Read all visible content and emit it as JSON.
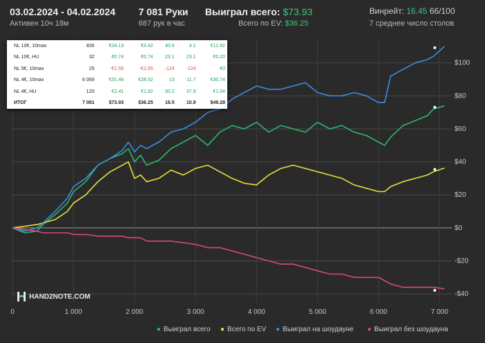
{
  "header": {
    "date_range": "03.02.2024 - 04.02.2024",
    "active": "Активен 10ч 18м",
    "hands": "7 081 Руки",
    "hands_per_hour": "687 рук в час",
    "won_total_label": "Выиграл всего:",
    "won_total_value": "$73.93",
    "ev_total_label": "Всего по EV:",
    "ev_total_value": "$36.25",
    "winrate_label": "Винрейт:",
    "winrate_value": "16.45",
    "winrate_rest": "66/100",
    "avg_tables": "7 среднее число столов"
  },
  "stats_table": {
    "rows": [
      {
        "name": "NL 10€, 10max",
        "hands": "835",
        "won": "€34.13",
        "ev": "€3.42",
        "bb": "40.9",
        "evbb": "4.1",
        "sd": "€12.82"
      },
      {
        "name": "NL 10€, HU",
        "hands": "32",
        "won": "€0.74",
        "ev": "€0.74",
        "bb": "23.1",
        "evbb": "23.1",
        "sd": "€0.20"
      },
      {
        "name": "NL 5€, 10max",
        "hands": "25",
        "won": "-€1.55",
        "ev": "-€1.55",
        "bb": "-124",
        "evbb": "-124",
        "sd": "€0"
      },
      {
        "name": "NL 4€, 10max",
        "hands": "6 069",
        "won": "€31.48",
        "ev": "€28.52",
        "bb": "13",
        "evbb": "11.7",
        "sd": "€30.74"
      },
      {
        "name": "NL 4€, HU",
        "hands": "120",
        "won": "€2.41",
        "ev": "€1.82",
        "bb": "50.2",
        "evbb": "37.9",
        "sd": "€1.04"
      }
    ],
    "total": {
      "name": "ИТОГ",
      "hands": "7 081",
      "won": "$73.93",
      "ev": "$36.25",
      "bb": "16.5",
      "evbb": "10.9",
      "sd": "$49.28"
    }
  },
  "logo_text": "HAND2NOTE.COM",
  "chart_data": {
    "type": "line",
    "xlim": [
      0,
      7200
    ],
    "ylim": [
      -45,
      115
    ],
    "x_ticks": [
      0,
      1000,
      2000,
      3000,
      4000,
      5000,
      6000,
      7000
    ],
    "x_tick_labels": [
      "0",
      "1 000",
      "2 000",
      "3 000",
      "4 000",
      "5 000",
      "6 000",
      "7 000"
    ],
    "y_ticks": [
      -40,
      -20,
      0,
      20,
      40,
      60,
      80,
      100
    ],
    "y_tick_labels": [
      "-$40",
      "-$20",
      "$0",
      "$20",
      "$40",
      "$60",
      "$80",
      "$100"
    ],
    "grid": true,
    "legend_position": "bottom",
    "series": [
      {
        "name": "Выиграл всего",
        "color": "#2db86a",
        "x": [
          0,
          200,
          400,
          500,
          700,
          900,
          1000,
          1200,
          1400,
          1600,
          1800,
          1900,
          2000,
          2100,
          2200,
          2400,
          2600,
          2800,
          3000,
          3200,
          3400,
          3600,
          3800,
          4000,
          4200,
          4400,
          4600,
          4800,
          5000,
          5200,
          5400,
          5600,
          5800,
          6000,
          6100,
          6200,
          6400,
          6600,
          6800,
          6900,
          7081
        ],
        "y": [
          0,
          -3,
          -2,
          2,
          8,
          15,
          22,
          28,
          38,
          42,
          45,
          48,
          40,
          44,
          38,
          41,
          48,
          52,
          56,
          50,
          58,
          62,
          60,
          64,
          58,
          62,
          60,
          58,
          64,
          60,
          62,
          58,
          56,
          52,
          50,
          55,
          62,
          65,
          68,
          72,
          73.93
        ]
      },
      {
        "name": "Всего по EV",
        "color": "#e6e23c",
        "x": [
          0,
          200,
          400,
          500,
          700,
          900,
          1000,
          1200,
          1400,
          1600,
          1800,
          1900,
          2000,
          2100,
          2200,
          2400,
          2600,
          2800,
          3000,
          3200,
          3400,
          3600,
          3800,
          4000,
          4200,
          4400,
          4600,
          4800,
          5000,
          5200,
          5400,
          5600,
          5800,
          6000,
          6100,
          6200,
          6400,
          6600,
          6800,
          6900,
          7081
        ],
        "y": [
          0,
          1,
          2,
          3,
          5,
          10,
          15,
          20,
          28,
          34,
          38,
          40,
          30,
          32,
          28,
          30,
          35,
          32,
          36,
          38,
          34,
          30,
          27,
          26,
          32,
          36,
          38,
          36,
          34,
          32,
          30,
          26,
          24,
          22,
          22,
          25,
          28,
          30,
          32,
          34,
          36.25
        ]
      },
      {
        "name": "Выиграл на шоудауне",
        "color": "#3b8de0",
        "x": [
          0,
          200,
          400,
          500,
          700,
          900,
          1000,
          1200,
          1400,
          1600,
          1800,
          1900,
          2000,
          2100,
          2200,
          2400,
          2600,
          2800,
          3000,
          3200,
          3400,
          3600,
          3800,
          4000,
          4200,
          4400,
          4600,
          4800,
          5000,
          5200,
          5400,
          5600,
          5800,
          6000,
          6100,
          6200,
          6400,
          6600,
          6800,
          6900,
          7081
        ],
        "y": [
          0,
          -2,
          0,
          3,
          10,
          18,
          25,
          30,
          38,
          42,
          47,
          52,
          46,
          50,
          48,
          52,
          58,
          60,
          64,
          70,
          72,
          78,
          82,
          86,
          84,
          84,
          86,
          88,
          82,
          80,
          80,
          82,
          80,
          76,
          76,
          92,
          96,
          100,
          102,
          104,
          110
        ]
      },
      {
        "name": "Выиграл без шоудауна",
        "color": "#d9477a",
        "x": [
          0,
          200,
          400,
          500,
          700,
          900,
          1000,
          1200,
          1400,
          1600,
          1800,
          1900,
          2000,
          2100,
          2200,
          2400,
          2600,
          2800,
          3000,
          3200,
          3400,
          3600,
          3800,
          4000,
          4200,
          4400,
          4600,
          4800,
          5000,
          5200,
          5400,
          5600,
          5800,
          6000,
          6100,
          6200,
          6400,
          6600,
          6800,
          6900,
          7081
        ],
        "y": [
          0,
          -1,
          -2,
          -3,
          -3,
          -3,
          -4,
          -4,
          -5,
          -5,
          -5,
          -6,
          -6,
          -6,
          -8,
          -8,
          -8,
          -9,
          -10,
          -12,
          -12,
          -14,
          -16,
          -18,
          -20,
          -22,
          -22,
          -24,
          -26,
          -28,
          -28,
          -30,
          -30,
          -30,
          -32,
          -34,
          -36,
          -36,
          -36,
          -36,
          -37
        ]
      }
    ]
  }
}
